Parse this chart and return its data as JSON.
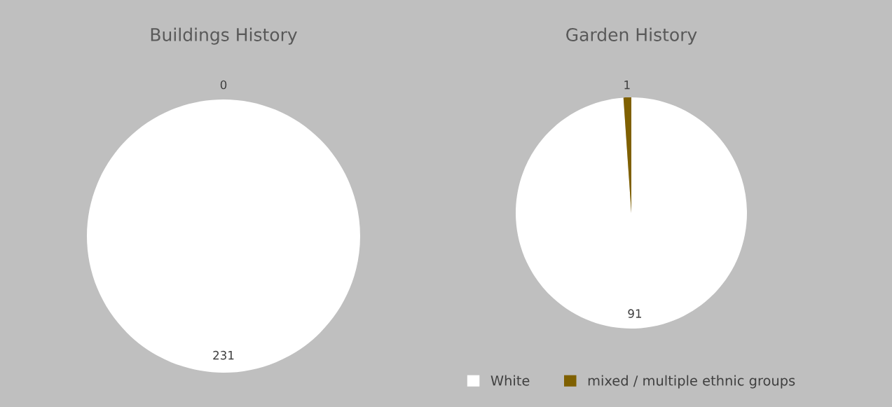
{
  "chart_data": [
    {
      "type": "pie",
      "title": "Buildings History",
      "categories": [
        null,
        null
      ],
      "values": [
        231,
        0
      ],
      "colors": [
        "#ffffff",
        "#7f6000"
      ],
      "value_labels": [
        "231",
        "0"
      ]
    },
    {
      "type": "pie",
      "title": "Garden History",
      "categories": [
        "White",
        "mixed / multiple ethnic groups"
      ],
      "values": [
        91,
        1
      ],
      "colors": [
        "#ffffff",
        "#7f6000"
      ],
      "data_labels": true,
      "legend": "bottom"
    }
  ]
}
